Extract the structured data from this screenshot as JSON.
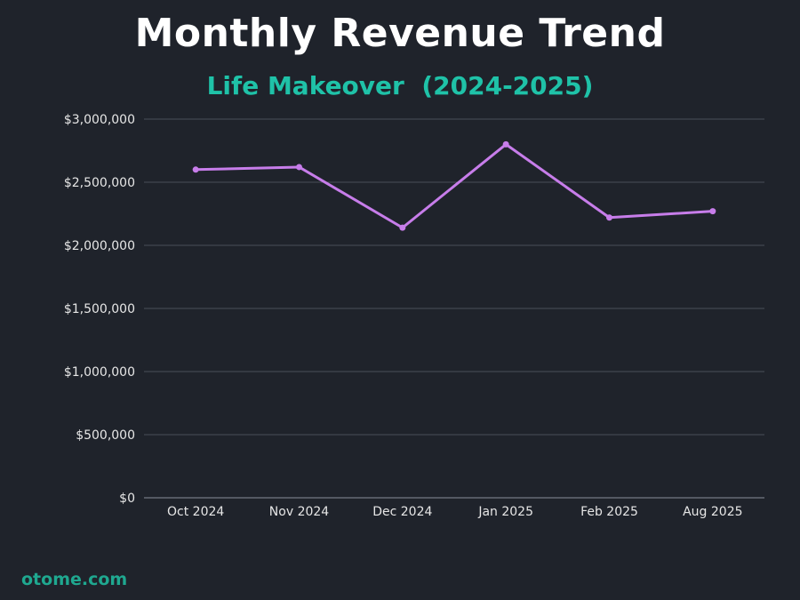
{
  "title": "Monthly Revenue Trend",
  "subtitle": "Life Makeover  (2024-2025)",
  "footer": "otome.com",
  "colors": {
    "background": "#1f232b",
    "title": "#ffffff",
    "subtitle": "#1fc2a8",
    "line": "#c77dea",
    "grid": "#4a4f58",
    "axis_text": "#e6e6e6",
    "footer": "#1fa890"
  },
  "chart_data": {
    "type": "line",
    "categories": [
      "Oct 2024",
      "Nov 2024",
      "Dec 2024",
      "Jan 2025",
      "Feb 2025",
      "Aug 2025"
    ],
    "series": [
      {
        "values": [
          2600000,
          2620000,
          2140000,
          2800000,
          2220000,
          2270000
        ]
      }
    ],
    "yticks": [
      "$0",
      "$500,000",
      "$1,000,000",
      "$1,500,000",
      "$2,000,000",
      "$2,500,000",
      "$3,000,000"
    ],
    "ylim": [
      0,
      3000000
    ],
    "grid": true,
    "legend": "none"
  }
}
